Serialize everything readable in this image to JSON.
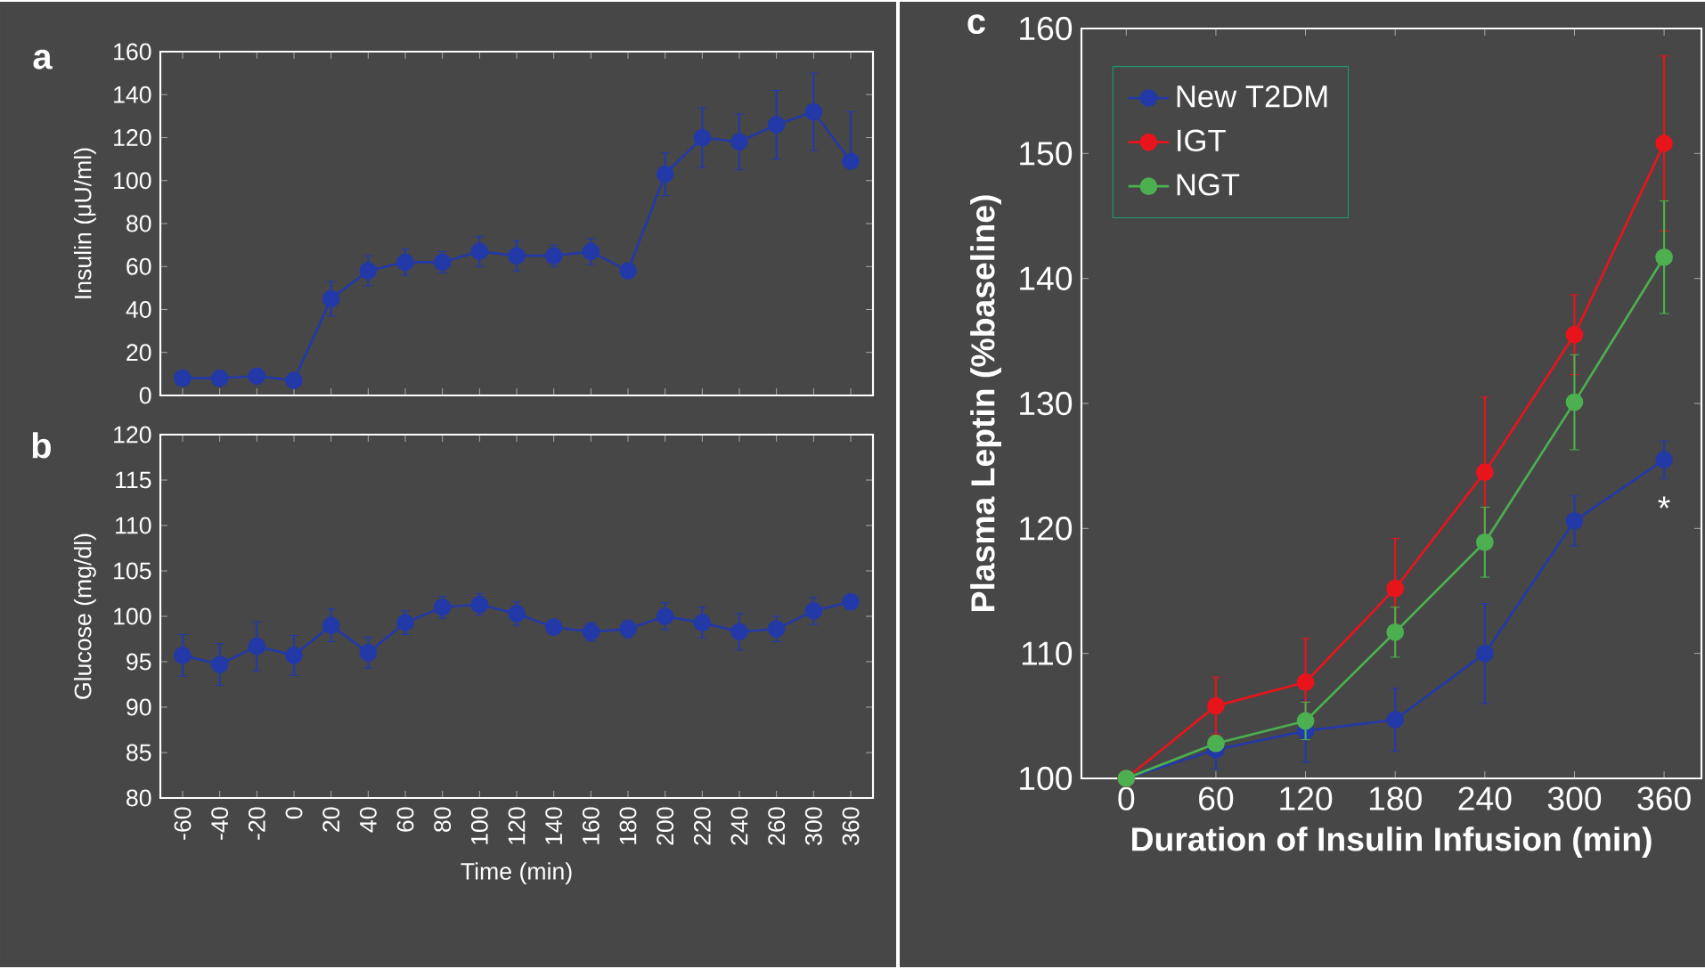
{
  "chart_data": [
    {
      "type": "line",
      "annotations": [
        "a"
      ],
      "ylabel": "Insulin (μU/ml)",
      "categories": [
        "-60",
        "-40",
        "-20",
        "0",
        "20",
        "40",
        "60",
        "80",
        "100",
        "120",
        "140",
        "160",
        "180",
        "200",
        "220",
        "240",
        "260",
        "300",
        "360"
      ],
      "tick_labels": "y",
      "ylim": [
        0,
        160
      ],
      "yticks": [
        0,
        20,
        40,
        60,
        80,
        100,
        120,
        140,
        160
      ],
      "marker": "circle",
      "color": "#2339a8",
      "values": [
        8,
        8,
        9,
        7,
        45,
        58,
        62,
        62,
        67,
        65,
        65,
        67,
        58,
        103,
        120,
        118,
        126,
        132,
        109
      ],
      "errors": [
        1,
        1,
        1,
        1,
        8,
        7,
        6,
        5,
        7,
        7,
        5,
        6,
        3,
        10,
        14,
        13,
        16,
        18,
        [
          107,
          132
        ]
      ]
    },
    {
      "type": "line",
      "annotations": [
        "b"
      ],
      "ylabel": "Glucose (mg/dl)",
      "xlabel": "Time (min)",
      "categories": [
        "-60",
        "-40",
        "-20",
        "0",
        "20",
        "40",
        "60",
        "80",
        "100",
        "120",
        "140",
        "160",
        "180",
        "200",
        "220",
        "240",
        "260",
        "300",
        "360"
      ],
      "ylim": [
        80,
        120
      ],
      "yticks": [
        80,
        85,
        90,
        95,
        100,
        105,
        110,
        115,
        120
      ],
      "marker": "circle",
      "color": "#2339a8",
      "values": [
        95.7,
        94.7,
        96.7,
        95.7,
        99,
        96,
        99.3,
        101,
        101.3,
        100.3,
        98.8,
        98.3,
        98.6,
        100,
        99.3,
        98.3,
        98.6,
        100.6,
        101.6
      ],
      "errors": [
        2.3,
        2.3,
        2.7,
        2.2,
        1.8,
        1.7,
        1.3,
        1.2,
        1.2,
        1.3,
        0.8,
        1,
        1,
        1.5,
        1.7,
        2,
        1.4,
        1.5,
        0.7
      ]
    },
    {
      "type": "line",
      "annotations": [
        "c",
        "*"
      ],
      "ylabel": "Plasma Leptin (%baseline)",
      "xlabel": "Duration of Insulin Infusion (min)",
      "x": [
        0,
        60,
        120,
        180,
        240,
        300,
        360
      ],
      "xlim": [
        -30,
        385
      ],
      "xticks": [
        0,
        60,
        120,
        180,
        240,
        300,
        360
      ],
      "ylim": [
        100,
        160
      ],
      "yticks": [
        100,
        110,
        120,
        130,
        140,
        150,
        160
      ],
      "marker": "circle",
      "legend": "top left",
      "series": [
        {
          "name": "New T2DM",
          "color": "#2339a8",
          "values": [
            100,
            102.3,
            103.8,
            104.7,
            110,
            120.6,
            125.5
          ],
          "errors": [
            null,
            1.5,
            2.5,
            2.5,
            4,
            2,
            1.5
          ]
        },
        {
          "name": "IGT",
          "color": "#e8141c",
          "values": [
            100,
            105.8,
            107.7,
            115.2,
            124.5,
            135.5,
            150.8
          ],
          "errors": [
            null,
            2.3,
            3.5,
            4,
            6,
            3.2,
            7
          ]
        },
        {
          "name": "NGT",
          "color": "#4cb050",
          "values": [
            100,
            102.8,
            104.6,
            111.7,
            118.9,
            130.1,
            141.7
          ],
          "errors": [
            null,
            null,
            1.5,
            2,
            2.8,
            3.8,
            4.5
          ]
        }
      ]
    }
  ]
}
